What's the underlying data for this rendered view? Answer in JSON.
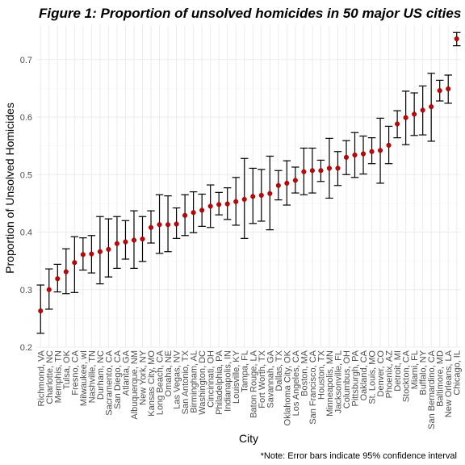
{
  "chart_data": {
    "type": "scatter",
    "title": "Figure 1: Proportion of unsolved homicides in 50 major US cities",
    "xlabel": "City",
    "ylabel": "Proportion of Unsolved Homicides",
    "caption": "*Note: Error bars indicate 95% confidence interval",
    "ylim": [
      0.2,
      0.76
    ],
    "yticks": [
      "0.2",
      "0.3",
      "0.4",
      "0.5",
      "0.6",
      "0.7"
    ],
    "grid": true,
    "colors": {
      "point": "#cc0000",
      "errorbar": "#000000",
      "grid": "#ebebeb"
    },
    "categories": [
      "Richmond, VA",
      "Charlotte, NC",
      "Memphis, TN",
      "Tulsa, OK",
      "Fresno, CA",
      "Milwaukee, wI",
      "Nashville, TN",
      "Durham, NC",
      "Sacramento, CA",
      "San Diego, CA",
      "Atlanta, GA",
      "Albuquerque, NM",
      "New York, NY",
      "Kansas City, MO",
      "Long Beach, CA",
      "Omaha, NE",
      "Las Vegas, NV",
      "San Antonio, TX",
      "Birmingham, AL",
      "Washington, DC",
      "Cincinnati, OH",
      "Philadelphia, PA",
      "Indianapolis, IN",
      "Louisville, KY",
      "Tampa, FL",
      "Baton Rouge, LA",
      "Fort Worth, TX",
      "Savannah, GA",
      "Dallas, TX",
      "Oklahoma City, OK",
      "Los Angeles, CA",
      "Boston, MA",
      "San Francisco, CA",
      "Houston, TX",
      "Minneapolis, MN",
      "Jacksonville, FL",
      "Columbus, OH",
      "Pittsburgh, PA",
      "Oakland, CA",
      "St. Louis, MO",
      "Denver, CO",
      "Phoenix, AZ",
      "Detroit, MI",
      "Stockton, CA",
      "Miami, FL",
      "Buffalo, NY",
      "San Bernardino, CA",
      "Baltimore, MD",
      "New Orleans, LA",
      "Chicago, IL"
    ],
    "estimate": [
      0.263,
      0.3,
      0.319,
      0.331,
      0.347,
      0.361,
      0.362,
      0.366,
      0.37,
      0.38,
      0.383,
      0.386,
      0.388,
      0.408,
      0.413,
      0.413,
      0.414,
      0.429,
      0.434,
      0.438,
      0.445,
      0.448,
      0.449,
      0.453,
      0.457,
      0.462,
      0.464,
      0.467,
      0.481,
      0.485,
      0.49,
      0.505,
      0.507,
      0.507,
      0.511,
      0.511,
      0.53,
      0.534,
      0.536,
      0.54,
      0.542,
      0.551,
      0.588,
      0.599,
      0.605,
      0.612,
      0.618,
      0.646,
      0.649,
      0.736
    ],
    "lower": [
      0.224,
      0.266,
      0.296,
      0.293,
      0.295,
      0.334,
      0.329,
      0.31,
      0.322,
      0.337,
      0.353,
      0.337,
      0.349,
      0.381,
      0.363,
      0.366,
      0.389,
      0.394,
      0.399,
      0.41,
      0.408,
      0.43,
      0.422,
      0.412,
      0.389,
      0.415,
      0.419,
      0.404,
      0.456,
      0.447,
      0.468,
      0.465,
      0.468,
      0.488,
      0.459,
      0.481,
      0.5,
      0.495,
      0.501,
      0.519,
      0.485,
      0.519,
      0.564,
      0.552,
      0.568,
      0.569,
      0.558,
      0.628,
      0.624,
      0.724
    ],
    "upper": [
      0.308,
      0.336,
      0.344,
      0.371,
      0.392,
      0.39,
      0.394,
      0.427,
      0.423,
      0.427,
      0.42,
      0.437,
      0.427,
      0.437,
      0.465,
      0.463,
      0.442,
      0.465,
      0.47,
      0.466,
      0.482,
      0.469,
      0.477,
      0.495,
      0.528,
      0.511,
      0.509,
      0.532,
      0.507,
      0.524,
      0.513,
      0.546,
      0.546,
      0.525,
      0.563,
      0.54,
      0.559,
      0.573,
      0.567,
      0.564,
      0.598,
      0.584,
      0.611,
      0.645,
      0.642,
      0.654,
      0.676,
      0.664,
      0.673,
      0.747
    ]
  }
}
